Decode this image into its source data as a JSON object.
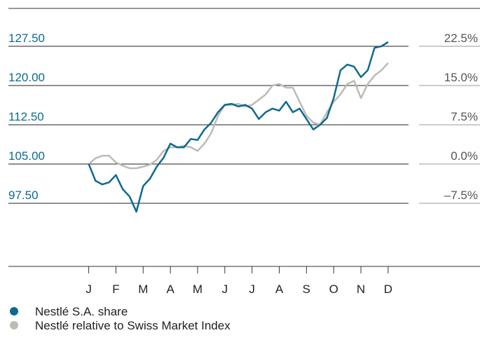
{
  "chart_data": {
    "type": "line",
    "x": [
      0,
      0.25,
      0.5,
      0.75,
      1,
      1.25,
      1.5,
      1.75,
      2,
      2.25,
      2.5,
      2.75,
      3,
      3.25,
      3.5,
      3.75,
      4,
      4.25,
      4.5,
      4.75,
      5,
      5.25,
      5.5,
      5.75,
      6,
      6.25,
      6.5,
      6.75,
      7,
      7.25,
      7.5,
      7.75,
      8,
      8.25,
      8.5,
      8.75,
      9,
      9.25,
      9.5,
      9.75,
      10,
      10.25,
      10.5,
      10.75,
      11
    ],
    "xlim": [
      -2.95,
      14.375
    ],
    "xticks": [
      {
        "value": 0,
        "label": "J"
      },
      {
        "value": 1,
        "label": "F"
      },
      {
        "value": 2,
        "label": "M"
      },
      {
        "value": 3,
        "label": "A"
      },
      {
        "value": 4,
        "label": "M"
      },
      {
        "value": 5,
        "label": "J"
      },
      {
        "value": 6,
        "label": "J"
      },
      {
        "value": 7,
        "label": "A"
      },
      {
        "value": 8,
        "label": "S"
      },
      {
        "value": 9,
        "label": "O"
      },
      {
        "value": 10,
        "label": "N"
      },
      {
        "value": 11,
        "label": "D"
      }
    ],
    "ylim": [
      85.45,
      134.73
    ],
    "yticks": [
      {
        "value": 97.5,
        "label": "97.50"
      },
      {
        "value": 105,
        "label": "105.00"
      },
      {
        "value": 112.5,
        "label": "112.50"
      },
      {
        "value": 120,
        "label": "120.00"
      },
      {
        "value": 127.5,
        "label": "127.50"
      }
    ],
    "y2lim": [
      -19.55,
      29.73
    ],
    "y2ticks": [
      {
        "value": -7.5,
        "label": "–7.5%"
      },
      {
        "value": 0,
        "label": "0.0%"
      },
      {
        "value": 7.5,
        "label": "7.5%"
      },
      {
        "value": 15,
        "label": "15.0%"
      },
      {
        "value": 22.5,
        "label": "22.5%"
      }
    ],
    "series": [
      {
        "name": "Nestlé S.A. share",
        "color": "#0d6a8f",
        "values": [
          105,
          101.8,
          101.1,
          101.5,
          102.9,
          100.2,
          98.8,
          95.9,
          100.8,
          102.2,
          104.5,
          106.2,
          108.9,
          108.2,
          108.2,
          109.8,
          109.6,
          111.6,
          112.9,
          114.9,
          116.3,
          116.5,
          116,
          116.3,
          115.6,
          113.6,
          114.9,
          115.6,
          115.2,
          116.9,
          114.9,
          115.6,
          113.6,
          111.6,
          112.5,
          113.8,
          117.6,
          122.9,
          124,
          123.6,
          121.6,
          122.9,
          127.2,
          127.5,
          128.3
        ]
      },
      {
        "name": "Nestlé relative to Swiss Market Index",
        "color": "#bdbbb4",
        "axis": "y2",
        "values": [
          0,
          1.1,
          1.6,
          1.6,
          0.3,
          -0.3,
          -0.8,
          -0.8,
          -0.5,
          -0.1,
          0.8,
          2.5,
          3.2,
          3.2,
          3.5,
          3.2,
          2.5,
          3.9,
          5.9,
          9.2,
          11.3,
          11.3,
          11.5,
          11,
          11.3,
          12.3,
          13.3,
          15,
          15.3,
          14.6,
          14.6,
          11.9,
          9.2,
          7.9,
          7.5,
          9.9,
          11.9,
          13.3,
          15.3,
          15.9,
          12.6,
          15.3,
          16.9,
          17.9,
          19.3
        ]
      }
    ]
  }
}
